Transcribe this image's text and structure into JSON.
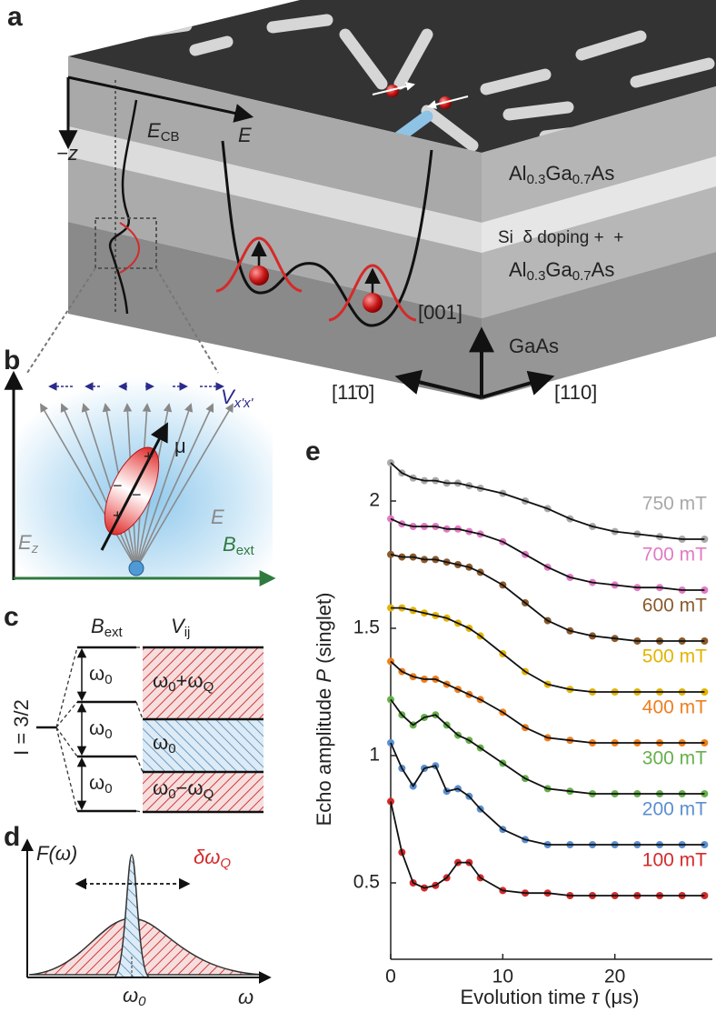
{
  "panels": {
    "a": {
      "label": "a",
      "z": "−z",
      "ecb": [
        "E",
        "CB"
      ],
      "e": "E",
      "layer_top": [
        "Al",
        "0.3",
        "Ga",
        "0.7",
        "As"
      ],
      "doping": "Si  δ doping +  +",
      "layer_mid": [
        "Al",
        "0.3",
        "Ga",
        "0.7",
        "As"
      ],
      "dir_001": "[001]",
      "substrate": "GaAs",
      "dir_1m10": "[11̄0]",
      "dir_110": "[110]"
    },
    "b": {
      "label": "b",
      "v": [
        "V",
        "x'x'"
      ],
      "mu": "μ",
      "e": "E",
      "ez": [
        "E",
        "z"
      ],
      "bext": [
        "B",
        "ext"
      ],
      "plus1": "+",
      "minus1": "−",
      "minus2": "−",
      "plus2": "+"
    },
    "c": {
      "label": "c",
      "bext": [
        "B",
        "ext"
      ],
      "vij": [
        "V",
        "ij"
      ],
      "spin": "I = 3/2",
      "w1": [
        "ω",
        "0"
      ],
      "w2": [
        "ω",
        "0"
      ],
      "w3": [
        "ω",
        "0"
      ],
      "top": [
        "ω",
        "0",
        "+ω",
        "Q"
      ],
      "mid": [
        "ω",
        "0"
      ],
      "bot": [
        "ω",
        "0",
        "−ω",
        "Q"
      ]
    },
    "d": {
      "label": "d",
      "f": "F(ω)",
      "dw": [
        "δω",
        "Q"
      ],
      "w0": [
        "ω",
        "0"
      ],
      "w": "ω"
    }
  },
  "chart_data": {
    "type": "line",
    "label": "e",
    "x_label": [
      "Evolution time ",
      "τ",
      " (μs)"
    ],
    "y_label": [
      "Echo amplitude ",
      "P",
      " (singlet)"
    ],
    "x": [
      0,
      1,
      2,
      3,
      4,
      5,
      6,
      7,
      8,
      10,
      12,
      14,
      16,
      18,
      20,
      22,
      24,
      26,
      28
    ],
    "xlim": [
      0,
      28.7
    ],
    "ylim": [
      0.2,
      2.15
    ],
    "xticks": [
      0,
      10,
      20
    ],
    "yticks": [
      0.5,
      1,
      1.5,
      2
    ],
    "grid": false,
    "fit_color": "#111111",
    "series": [
      {
        "name": "750 mT",
        "color": "#a9a9a9",
        "values": [
          2.15,
          2.11,
          2.09,
          2.08,
          2.08,
          2.07,
          2.07,
          2.06,
          2.05,
          2.03,
          2.0,
          1.97,
          1.93,
          1.9,
          1.88,
          1.87,
          1.86,
          1.85,
          1.85
        ]
      },
      {
        "name": "700 mT",
        "color": "#e27ac4",
        "values": [
          1.93,
          1.91,
          1.9,
          1.9,
          1.9,
          1.89,
          1.89,
          1.88,
          1.87,
          1.84,
          1.79,
          1.74,
          1.7,
          1.68,
          1.67,
          1.66,
          1.66,
          1.65,
          1.65
        ]
      },
      {
        "name": "600 mT",
        "color": "#8b5a2b",
        "values": [
          1.79,
          1.78,
          1.78,
          1.77,
          1.77,
          1.76,
          1.75,
          1.74,
          1.72,
          1.67,
          1.6,
          1.53,
          1.49,
          1.47,
          1.46,
          1.45,
          1.45,
          1.45,
          1.45
        ]
      },
      {
        "name": "500 mT",
        "color": "#e3b400",
        "values": [
          1.58,
          1.58,
          1.57,
          1.56,
          1.55,
          1.54,
          1.52,
          1.5,
          1.47,
          1.4,
          1.33,
          1.28,
          1.26,
          1.25,
          1.25,
          1.25,
          1.25,
          1.25,
          1.25
        ]
      },
      {
        "name": "400 mT",
        "color": "#ee7f1e",
        "values": [
          1.37,
          1.33,
          1.31,
          1.3,
          1.3,
          1.28,
          1.26,
          1.24,
          1.22,
          1.17,
          1.11,
          1.07,
          1.06,
          1.05,
          1.05,
          1.05,
          1.05,
          1.05,
          1.05
        ]
      },
      {
        "name": "300 mT",
        "color": "#66b04a",
        "values": [
          1.22,
          1.16,
          1.12,
          1.15,
          1.16,
          1.12,
          1.08,
          1.06,
          1.03,
          0.97,
          0.91,
          0.87,
          0.86,
          0.85,
          0.85,
          0.85,
          0.85,
          0.85,
          0.85
        ]
      },
      {
        "name": "200 mT",
        "color": "#5b8fd0",
        "values": [
          1.05,
          0.95,
          0.88,
          0.95,
          0.96,
          0.86,
          0.87,
          0.84,
          0.79,
          0.71,
          0.67,
          0.65,
          0.65,
          0.65,
          0.65,
          0.65,
          0.65,
          0.65,
          0.65
        ]
      },
      {
        "name": "100 mT",
        "color": "#d42a2a",
        "values": [
          0.82,
          0.62,
          0.5,
          0.48,
          0.49,
          0.52,
          0.58,
          0.58,
          0.52,
          0.47,
          0.46,
          0.46,
          0.45,
          0.45,
          0.45,
          0.45,
          0.45,
          0.45,
          0.45
        ]
      }
    ]
  }
}
